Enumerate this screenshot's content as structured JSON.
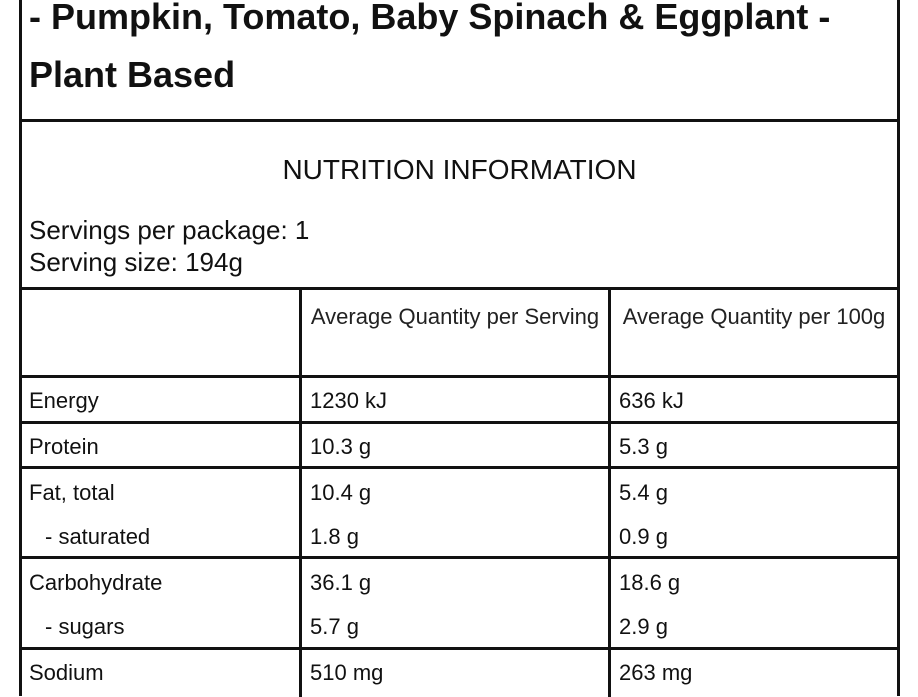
{
  "title": {
    "line1": "- Pumpkin, Tomato, Baby Spinach & Eggplant -",
    "line2": "Plant Based"
  },
  "nutrition": {
    "heading": "NUTRITION INFORMATION",
    "servings_per_package": "Servings per package: 1",
    "serving_size": "Serving size: 194g",
    "columns": [
      "",
      "Average Quantity per Serving",
      "Average Quantity per 100g"
    ],
    "rows": [
      {
        "name": "Energy",
        "per_serving": "1230 kJ",
        "per_100g": "636 kJ"
      },
      {
        "name": "Protein",
        "per_serving": "10.3 g",
        "per_100g": "5.3 g"
      },
      {
        "name": "Fat, total",
        "per_serving": "10.4 g",
        "per_100g": "5.4 g"
      },
      {
        "name": "- saturated",
        "per_serving": "1.8 g",
        "per_100g": "0.9 g"
      },
      {
        "name": "Carbohydrate",
        "per_serving": "36.1 g",
        "per_100g": "18.6 g"
      },
      {
        "name": "- sugars",
        "per_serving": "5.7 g",
        "per_100g": "2.9 g"
      },
      {
        "name": "Sodium",
        "per_serving": "510 mg",
        "per_100g": "263 mg"
      }
    ]
  }
}
